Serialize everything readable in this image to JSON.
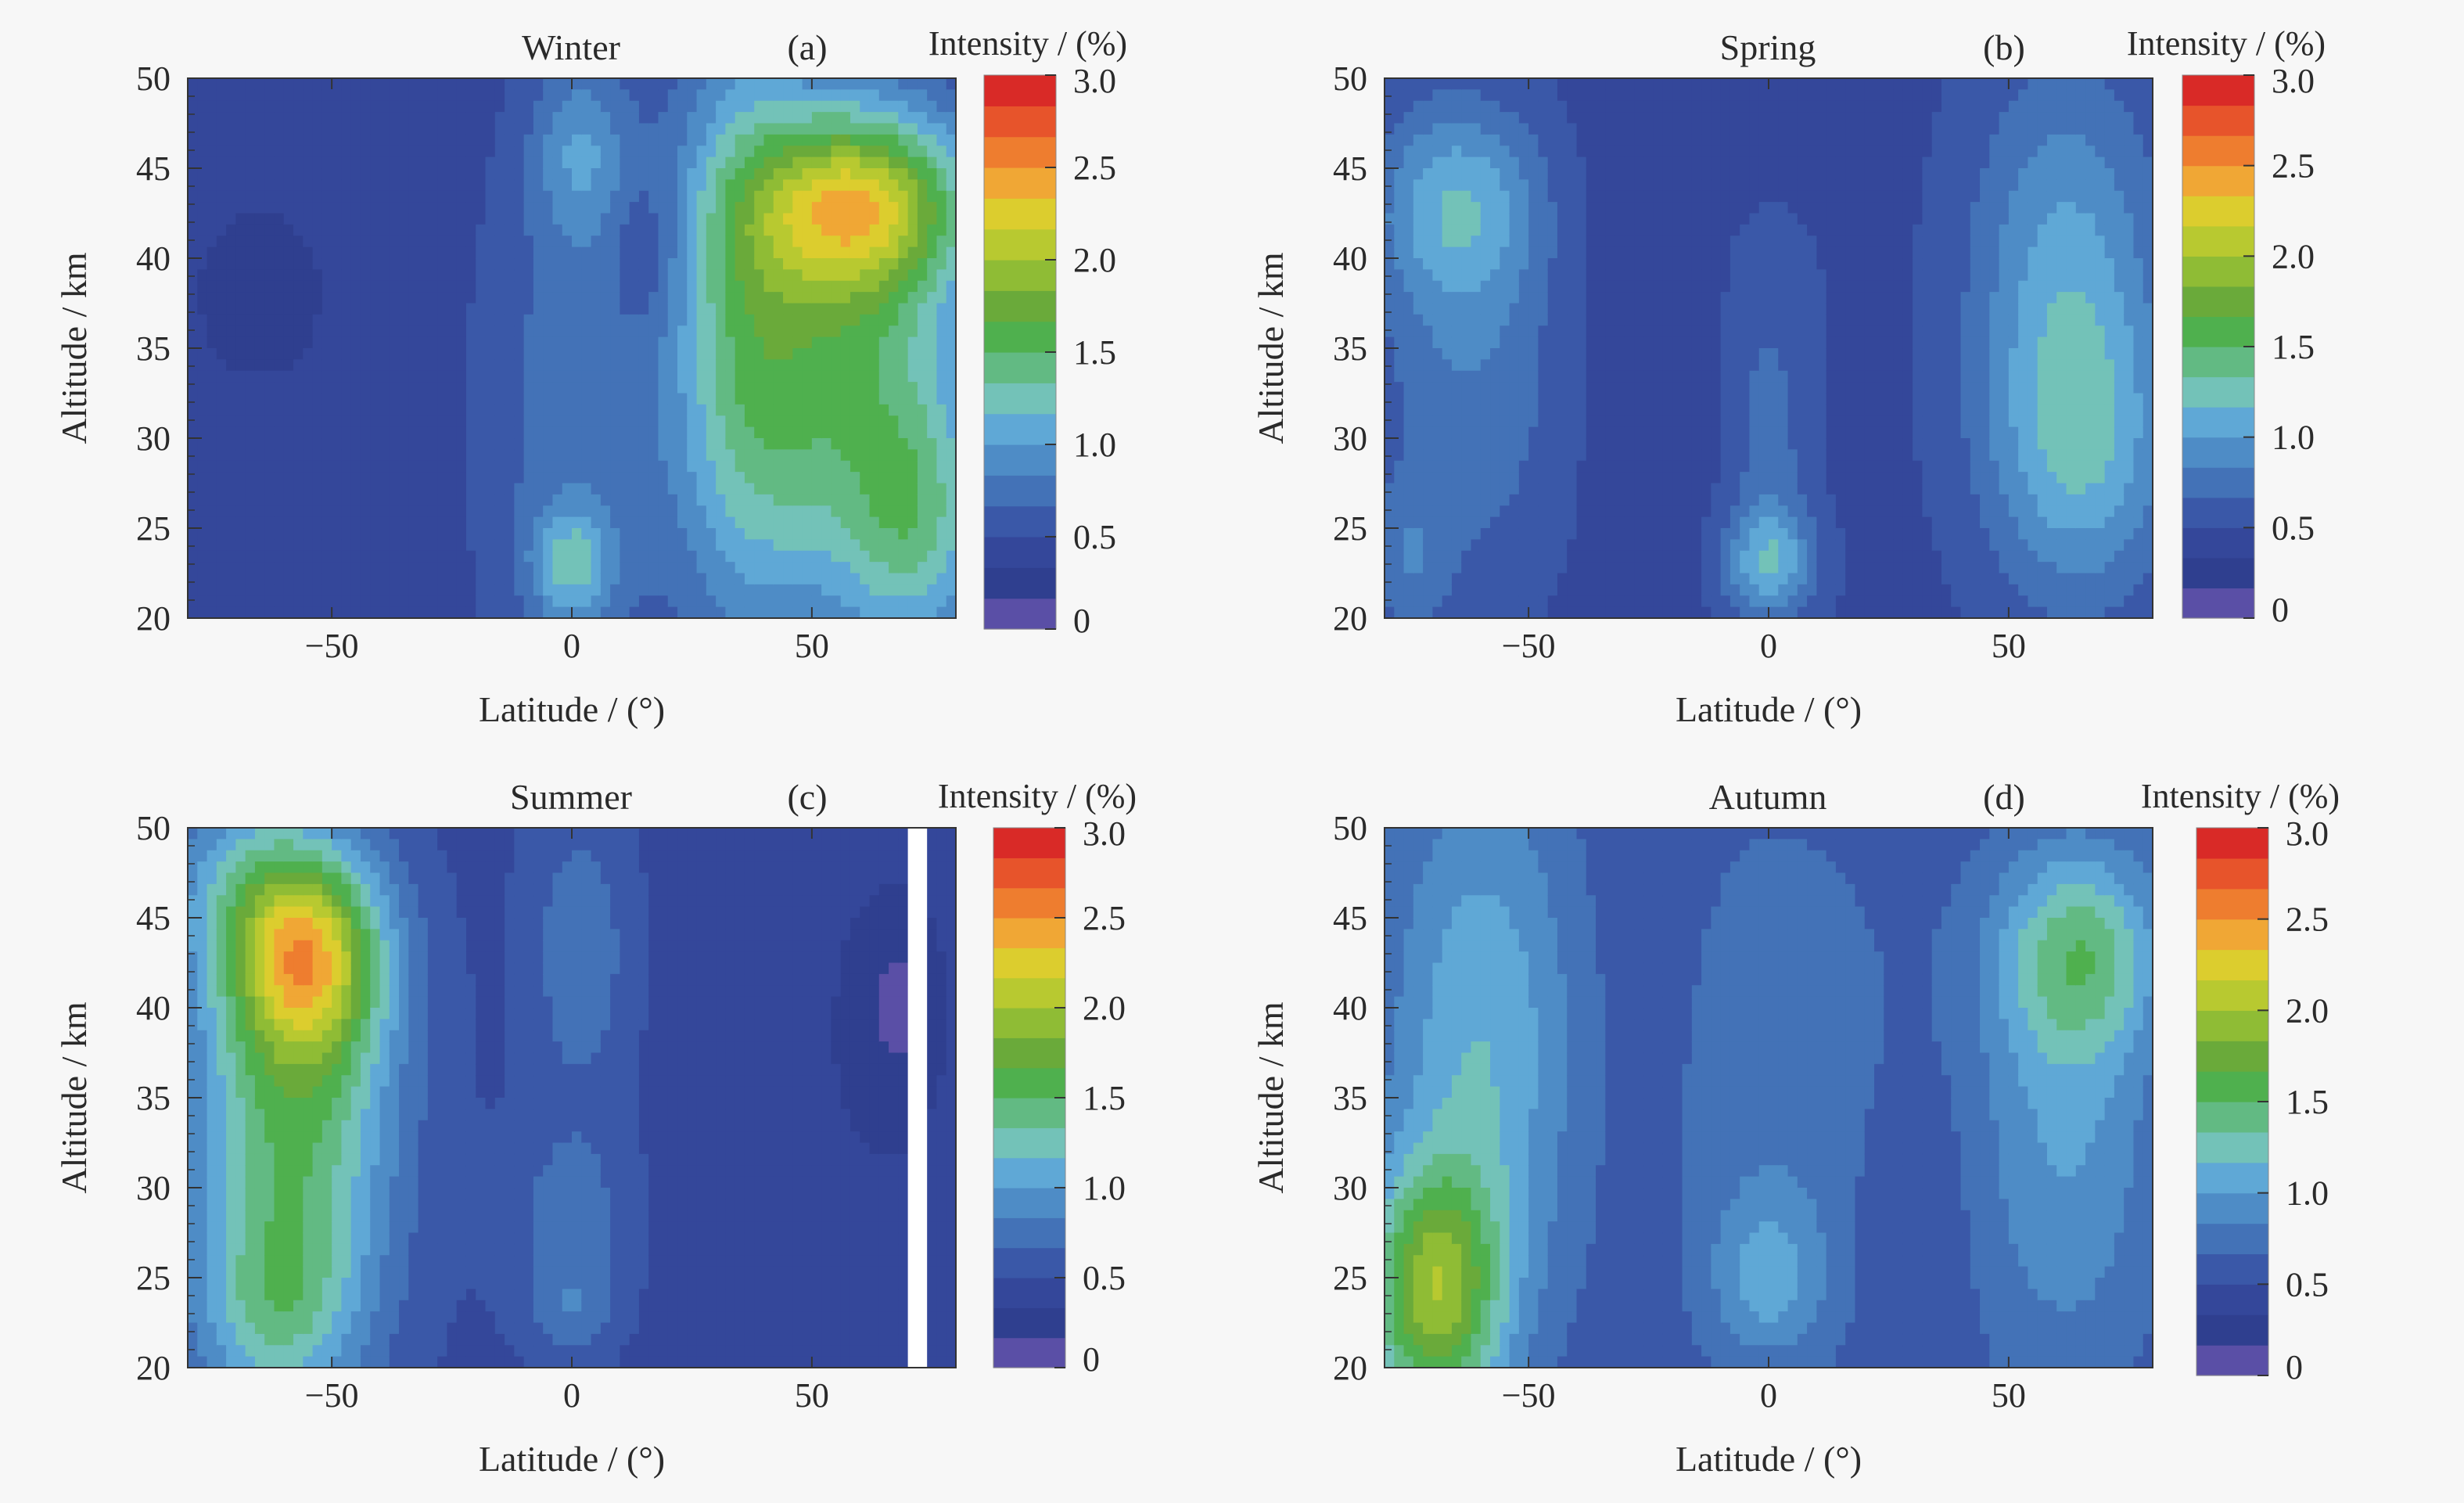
{
  "colors": {
    "background": "#f7f7f7",
    "axis": "#333333",
    "colormap": [
      "#5a4fa6",
      "#2f3f8f",
      "#34479a",
      "#3a58a8",
      "#4372b7",
      "#4e8cc6",
      "#5fa8d6",
      "#73c2b8",
      "#62ba83",
      "#4fb04e",
      "#6aaa3a",
      "#8fbc35",
      "#b8c930",
      "#dccd2e",
      "#f0a735",
      "#ee7d2f",
      "#e7542b",
      "#d92a27"
    ]
  },
  "chart_data": [
    {
      "type": "heatmap",
      "panel_label": "(a)",
      "title": "Winter",
      "xlabel": "Latitude / (°)",
      "ylabel": "Altitude / km",
      "colorbar_label": "Intensity / (%)",
      "xlim": [
        -80,
        80
      ],
      "ylim": [
        20,
        50
      ],
      "clim": [
        0,
        3
      ],
      "x_ticks": [
        -50,
        0,
        50
      ],
      "y_ticks": [
        20,
        25,
        30,
        35,
        40,
        45,
        50
      ],
      "colorbar_ticks": [
        "0",
        "0.5",
        "1.0",
        "1.5",
        "2.0",
        "2.5",
        "3.0"
      ],
      "background_value": 0.4,
      "features": [
        {
          "lat": -65,
          "alt": 38,
          "value": -0.1,
          "sx": 14,
          "sy": 5
        },
        {
          "lat": 2,
          "alt": 46,
          "value": 0.45,
          "sx": 7,
          "sy": 3.5
        },
        {
          "lat": 0,
          "alt": 31,
          "value": 0.35,
          "sx": 14,
          "sy": 13
        },
        {
          "lat": 0,
          "alt": 23,
          "value": 0.6,
          "sx": 6,
          "sy": 2.2
        },
        {
          "lat": 60,
          "alt": 43,
          "value": 1.3,
          "sx": 16,
          "sy": 3.5
        },
        {
          "lat": 55,
          "alt": 34,
          "value": 1.05,
          "sx": 20,
          "sy": 10
        },
        {
          "lat": 35,
          "alt": 38,
          "value": 0.5,
          "sx": 10,
          "sy": 14
        },
        {
          "lat": 72,
          "alt": 25,
          "value": 0.6,
          "sx": 10,
          "sy": 5
        },
        {
          "lat": 15,
          "alt": 40,
          "value": -0.2,
          "sx": 5,
          "sy": 3
        }
      ]
    },
    {
      "type": "heatmap",
      "panel_label": "(b)",
      "title": "Spring",
      "xlabel": "Latitude / (°)",
      "ylabel": "Altitude / km",
      "colorbar_label": "Intensity / (%)",
      "xlim": [
        -80,
        80
      ],
      "ylim": [
        20,
        50
      ],
      "clim": [
        0,
        3
      ],
      "x_ticks": [
        -50,
        0,
        50
      ],
      "y_ticks": [
        20,
        25,
        30,
        35,
        40,
        45,
        50
      ],
      "colorbar_ticks": [
        "0",
        "0.5",
        "1.0",
        "1.5",
        "2.0",
        "2.5",
        "3.0"
      ],
      "background_value": 0.45,
      "features": [
        {
          "lat": -65,
          "alt": 43,
          "value": 0.6,
          "sx": 12,
          "sy": 4
        },
        {
          "lat": -62,
          "alt": 33,
          "value": 0.35,
          "sx": 14,
          "sy": 8
        },
        {
          "lat": -75,
          "alt": 23,
          "value": 0.3,
          "sx": 6,
          "sy": 3
        },
        {
          "lat": 0,
          "alt": 23,
          "value": 0.65,
          "sx": 7,
          "sy": 2.2
        },
        {
          "lat": 0,
          "alt": 30,
          "value": 0.3,
          "sx": 6,
          "sy": 5
        },
        {
          "lat": 0,
          "alt": 39,
          "value": 0.1,
          "sx": 8,
          "sy": 3
        },
        {
          "lat": 62,
          "alt": 40,
          "value": 0.55,
          "sx": 14,
          "sy": 8
        },
        {
          "lat": 65,
          "alt": 29,
          "value": 0.6,
          "sx": 14,
          "sy": 6
        },
        {
          "lat": -25,
          "alt": 36,
          "value": -0.1,
          "sx": 10,
          "sy": 10
        }
      ]
    },
    {
      "type": "heatmap",
      "panel_label": "(c)",
      "title": "Summer",
      "xlabel": "Latitude / (°)",
      "ylabel": "Altitude / km",
      "colorbar_label": "Intensity / (%)",
      "xlim": [
        -80,
        80
      ],
      "ylim": [
        20,
        50
      ],
      "clim": [
        0,
        3
      ],
      "x_ticks": [
        -50,
        0,
        50
      ],
      "y_ticks": [
        20,
        25,
        30,
        35,
        40,
        45,
        50
      ],
      "colorbar_ticks": [
        "0",
        "0.5",
        "1.0",
        "1.5",
        "2.0",
        "2.5",
        "3.0"
      ],
      "background_value": 0.45,
      "features": [
        {
          "lat": -55,
          "alt": 43,
          "value": 1.35,
          "sx": 11,
          "sy": 4
        },
        {
          "lat": -58,
          "alt": 34,
          "value": 1.05,
          "sx": 15,
          "sy": 9
        },
        {
          "lat": -70,
          "alt": 47,
          "value": 0.4,
          "sx": 12,
          "sy": 4
        },
        {
          "lat": -62,
          "alt": 23,
          "value": 0.55,
          "sx": 12,
          "sy": 4
        },
        {
          "lat": 2,
          "alt": 43,
          "value": 0.35,
          "sx": 8,
          "sy": 6
        },
        {
          "lat": 0,
          "alt": 28,
          "value": 0.3,
          "sx": 10,
          "sy": 4
        },
        {
          "lat": 0,
          "alt": 23,
          "value": 0.25,
          "sx": 6,
          "sy": 2
        },
        {
          "lat": 55,
          "alt": 35,
          "value": -0.1,
          "sx": 25,
          "sy": 15
        },
        {
          "lat": 68,
          "alt": 40,
          "value": -0.25,
          "sx": 6,
          "sy": 4
        }
      ],
      "gaps": [
        [
          70,
          74
        ]
      ]
    },
    {
      "type": "heatmap",
      "panel_label": "(d)",
      "title": "Autumn",
      "xlabel": "Latitude / (°)",
      "ylabel": "Altitude / km",
      "colorbar_label": "Intensity / (%)",
      "xlim": [
        -80,
        80
      ],
      "ylim": [
        20,
        50
      ],
      "clim": [
        0,
        3
      ],
      "x_ticks": [
        -50,
        0,
        50
      ],
      "y_ticks": [
        20,
        25,
        30,
        35,
        40,
        45,
        50
      ],
      "colorbar_ticks": [
        "0",
        "0.5",
        "1.0",
        "1.5",
        "2.0",
        "2.5",
        "3.0"
      ],
      "background_value": 0.55,
      "features": [
        {
          "lat": -70,
          "alt": 24,
          "value": 1.25,
          "sx": 10,
          "sy": 5
        },
        {
          "lat": -60,
          "alt": 38,
          "value": 0.6,
          "sx": 14,
          "sy": 11
        },
        {
          "lat": 0,
          "alt": 25,
          "value": 0.4,
          "sx": 8,
          "sy": 3
        },
        {
          "lat": 0,
          "alt": 35,
          "value": 0.25,
          "sx": 22,
          "sy": 12
        },
        {
          "lat": 65,
          "alt": 43,
          "value": 0.7,
          "sx": 12,
          "sy": 4
        },
        {
          "lat": 62,
          "alt": 33,
          "value": 0.45,
          "sx": 14,
          "sy": 10
        },
        {
          "lat": -25,
          "alt": 38,
          "value": -0.1,
          "sx": 10,
          "sy": 12
        },
        {
          "lat": 30,
          "alt": 28,
          "value": -0.15,
          "sx": 8,
          "sy": 6
        }
      ]
    }
  ]
}
